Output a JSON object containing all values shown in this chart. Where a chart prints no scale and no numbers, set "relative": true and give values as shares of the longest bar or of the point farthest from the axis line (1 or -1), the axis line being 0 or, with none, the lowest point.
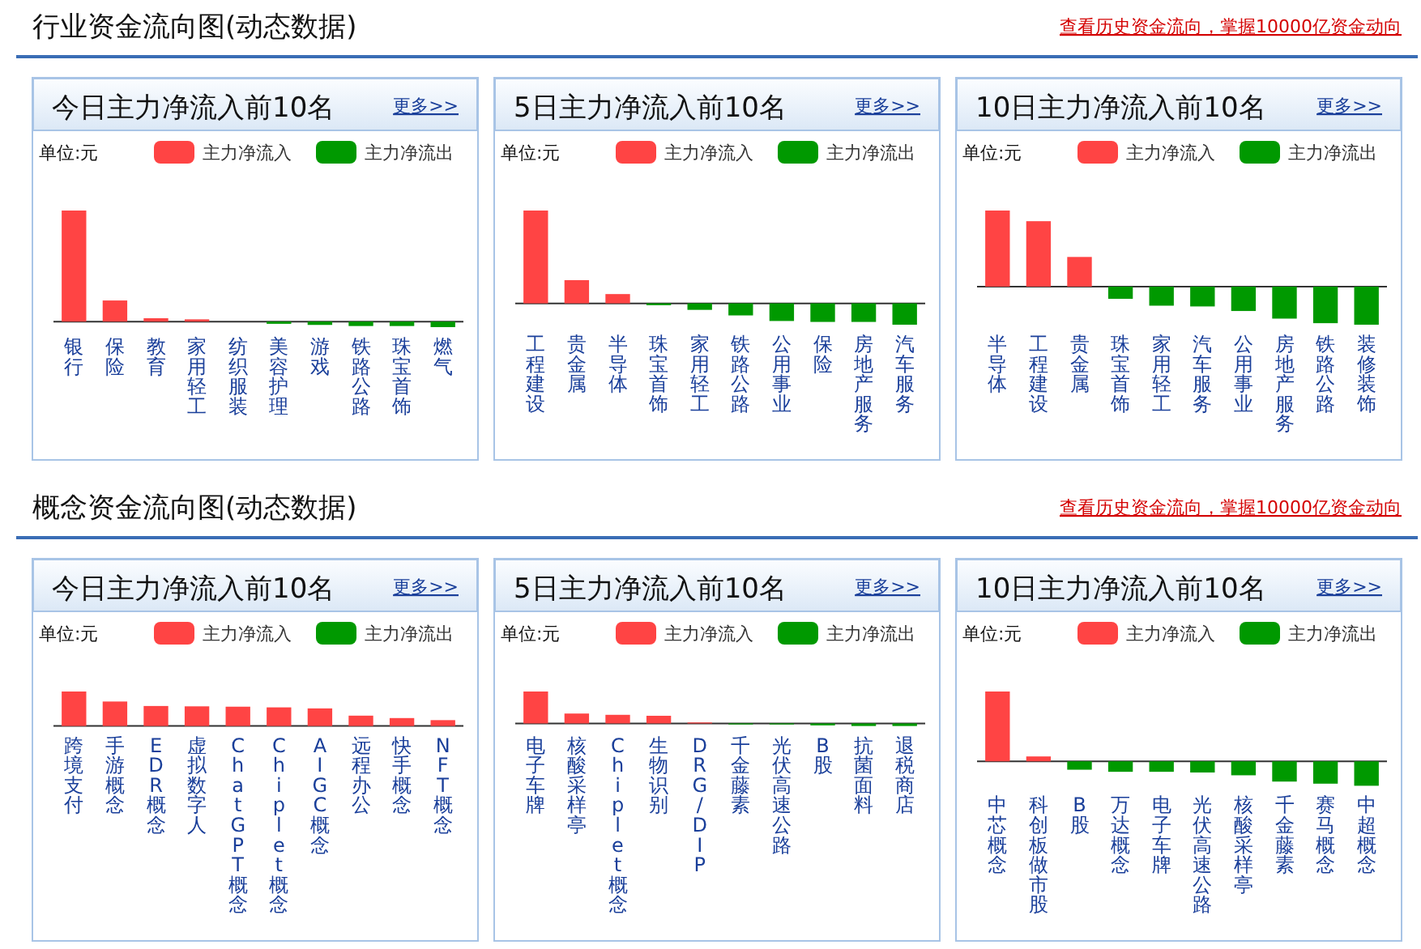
{
  "chart_data": [
    {
      "type": "bar",
      "title": "今日主力净流入前10名",
      "relative": true,
      "legend": "top right",
      "categories": [
        "银行",
        "保险",
        "教育",
        "家用轻工",
        "纺织服装",
        "美容护理",
        "游戏",
        "铁路公路",
        "珠宝首饰",
        "燃气"
      ],
      "series": [
        {
          "name": "主力净流入",
          "color": "#ff4444",
          "values": [
            1,
            0.19,
            0.03,
            0.02,
            0,
            null,
            null,
            null,
            null,
            null
          ]
        },
        {
          "name": "主力净流出",
          "color": "#009900",
          "values": [
            null,
            null,
            null,
            null,
            null,
            -0.02,
            -0.03,
            -0.04,
            -0.04,
            -0.05
          ]
        }
      ],
      "annotations": [
        "更多>>",
        "单位:元",
        "行业资金流向图(动态数据)",
        "查看历史资金流向，掌握10000亿资金动向"
      ]
    },
    {
      "type": "bar",
      "title": "5日主力净流入前10名",
      "relative": true,
      "legend": "top right",
      "categories": [
        "工程建设",
        "贵金属",
        "半导体",
        "珠宝首饰",
        "家用轻工",
        "铁路公路",
        "公用事业",
        "保险",
        "房地产服务",
        "汽车服务"
      ],
      "series": [
        {
          "name": "主力净流入",
          "color": "#ff4444",
          "values": [
            1,
            0.25,
            0.1,
            null,
            null,
            null,
            null,
            null,
            null,
            null
          ]
        },
        {
          "name": "主力净流出",
          "color": "#009900",
          "values": [
            null,
            null,
            null,
            -0.02,
            -0.07,
            -0.13,
            -0.19,
            -0.2,
            -0.2,
            -0.23
          ]
        }
      ],
      "annotations": [
        "更多>>",
        "单位:元"
      ]
    },
    {
      "type": "bar",
      "title": "10日主力净流入前10名",
      "relative": true,
      "legend": "top right",
      "categories": [
        "半导体",
        "工程建设",
        "贵金属",
        "珠宝首饰",
        "家用轻工",
        "汽车服务",
        "公用事业",
        "房地产服务",
        "铁路公路",
        "装修装饰"
      ],
      "series": [
        {
          "name": "主力净流入",
          "color": "#ff4444",
          "values": [
            1,
            0.86,
            0.39,
            null,
            null,
            null,
            null,
            null,
            null,
            null
          ]
        },
        {
          "name": "主力净流出",
          "color": "#009900",
          "values": [
            null,
            null,
            null,
            -0.16,
            -0.25,
            -0.26,
            -0.32,
            -0.42,
            -0.48,
            -0.5
          ]
        }
      ],
      "annotations": [
        "更多>>",
        "单位:元"
      ]
    },
    {
      "type": "bar",
      "title": "今日主力净流入前10名",
      "relative": true,
      "legend": "top right",
      "categories": [
        "跨境支付",
        "手游概念",
        "EDR概念",
        "虚拟数字人",
        "ChatGPT概念",
        "Chiplet概念",
        "AIGC概念",
        "远程办公",
        "快手概念",
        "NFT概念"
      ],
      "series": [
        {
          "name": "主力净流入",
          "color": "#ff4444",
          "values": [
            1,
            0.71,
            0.58,
            0.57,
            0.56,
            0.54,
            0.51,
            0.3,
            0.23,
            0.17
          ]
        },
        {
          "name": "主力净流出",
          "color": "#009900",
          "values": [
            null,
            null,
            null,
            null,
            null,
            null,
            null,
            null,
            null,
            null
          ]
        }
      ],
      "annotations": [
        "更多>>",
        "单位:元",
        "概念资金流向图(动态数据)",
        "查看历史资金流向，掌握10000亿资金动向"
      ]
    },
    {
      "type": "bar",
      "title": "5日主力净流入前10名",
      "relative": true,
      "legend": "top right",
      "categories": [
        "电子车牌",
        "核酸采样亭",
        "Chiplet概念",
        "生物识别",
        "DRG/DIP",
        "千金藤素",
        "光伏高速公路",
        "B股",
        "抗菌面料",
        "退税商店"
      ],
      "series": [
        {
          "name": "主力净流入",
          "color": "#ff4444",
          "values": [
            1,
            0.31,
            0.27,
            0.24,
            0.03,
            null,
            null,
            null,
            null,
            null
          ]
        },
        {
          "name": "主力净流出",
          "color": "#009900",
          "values": [
            null,
            null,
            null,
            null,
            null,
            -0.03,
            -0.03,
            -0.06,
            -0.08,
            -0.08
          ]
        }
      ],
      "annotations": [
        "更多>>",
        "单位:元"
      ]
    },
    {
      "type": "bar",
      "title": "10日主力净流入前10名",
      "relative": true,
      "legend": "top right",
      "categories": [
        "中芯概念",
        "科创板做市股",
        "B股",
        "万达概念",
        "电子车牌",
        "光伏高速公路",
        "核酸采样亭",
        "千金藤素",
        "赛马概念",
        "中超概念"
      ],
      "series": [
        {
          "name": "主力净流入",
          "color": "#ff4444",
          "values": [
            1,
            0.07,
            null,
            null,
            null,
            null,
            null,
            null,
            null,
            null
          ]
        },
        {
          "name": "主力净流出",
          "color": "#009900",
          "values": [
            null,
            null,
            -0.12,
            -0.15,
            -0.15,
            -0.16,
            -0.2,
            -0.29,
            -0.32,
            -0.35
          ]
        }
      ],
      "annotations": [
        "更多>>",
        "单位:元"
      ]
    }
  ]
}
